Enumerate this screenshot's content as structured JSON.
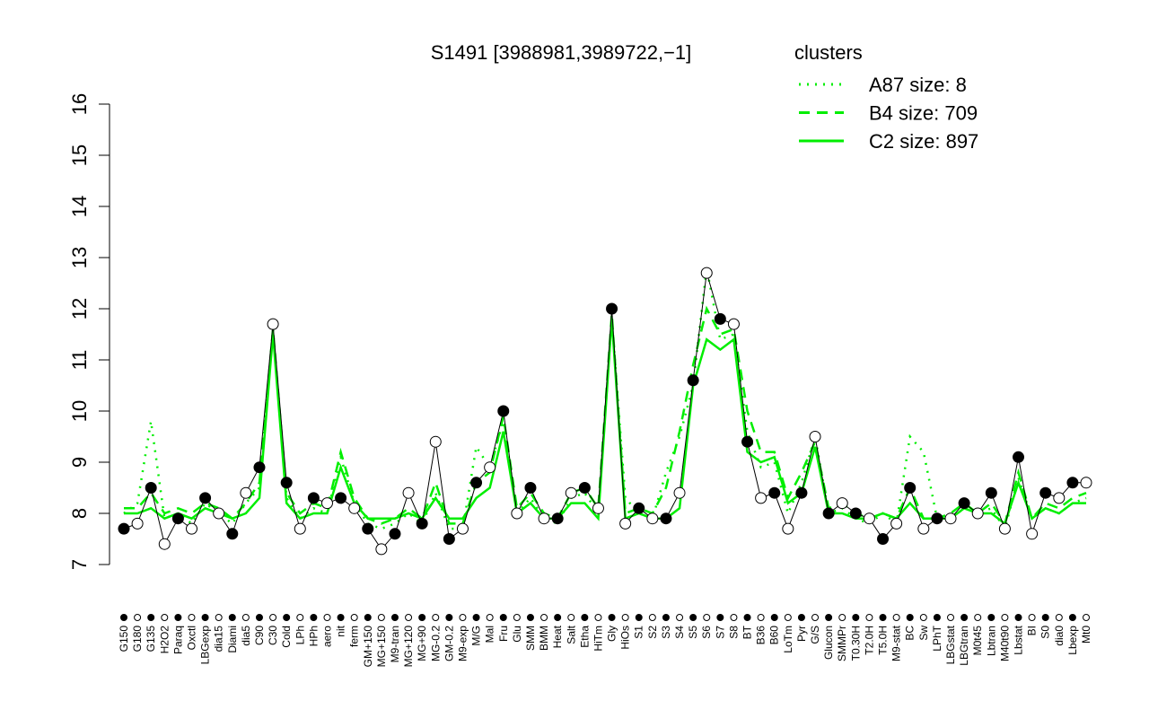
{
  "chart_data": {
    "type": "line",
    "title": "S1491 [3988981,3989722,−1]",
    "legend_title": "clusters",
    "legend_color": "#00ee00",
    "point_colors": [
      "#000000",
      "#ffffff"
    ],
    "categories": [
      "G150",
      "G180",
      "G135",
      "H2O2",
      "Paraq",
      "Oxctl",
      "LBGexp",
      "dia15",
      "Diami",
      "dia5",
      "C90",
      "C30",
      "Cold",
      "LPh",
      "HPh",
      "aero",
      "nit",
      "ferm",
      "GM+150",
      "MG+150",
      "M9-tran",
      "MG+120",
      "MG+90",
      "MG-0.2",
      "GM-0.2",
      "M9-exp",
      "M/G",
      "Mal",
      "Fru",
      "Glu",
      "SMM",
      "BMM",
      "Heat",
      "Salt",
      "Etha",
      "HiTm",
      "Gly",
      "HiOs",
      "S1",
      "S2",
      "S3",
      "S4",
      "S5",
      "S6",
      "S7",
      "S8",
      "BT",
      "B36",
      "B60",
      "LoTm",
      "Pyr",
      "G/S",
      "Glucon",
      "SMMPr",
      "T0.30H",
      "T2.0H",
      "T5.0H",
      "M9-stat",
      "BC",
      "Sw",
      "LPhT",
      "LBGstat",
      "LBGtran",
      "M0t45",
      "Lbtran",
      "M40t90",
      "Lbstat",
      "BI",
      "S0",
      "dia0",
      "Lbexp",
      "Mt0"
    ],
    "values": [
      7.7,
      7.8,
      8.5,
      7.4,
      7.9,
      7.7,
      8.3,
      8.0,
      7.6,
      8.4,
      8.9,
      11.7,
      8.6,
      7.7,
      8.3,
      8.2,
      8.3,
      8.1,
      7.7,
      7.3,
      7.6,
      8.4,
      7.8,
      9.4,
      7.5,
      7.7,
      8.6,
      8.9,
      10.0,
      8.0,
      8.5,
      7.9,
      7.9,
      8.4,
      8.5,
      8.1,
      12.0,
      7.8,
      8.1,
      7.9,
      7.9,
      8.4,
      10.6,
      12.7,
      11.8,
      11.7,
      9.4,
      8.3,
      8.4,
      7.7,
      8.4,
      9.5,
      8.0,
      8.2,
      8.0,
      7.9,
      7.5,
      7.8,
      8.5,
      7.7,
      7.9,
      7.9,
      8.2,
      8.0,
      8.4,
      7.7,
      9.1,
      7.6,
      8.4,
      8.3,
      8.6,
      8.6
    ],
    "series": [
      {
        "name": "A87 size: 8",
        "style": "dotted",
        "color": "#00ee00",
        "values": [
          8.0,
          8.2,
          9.8,
          7.9,
          8.0,
          7.8,
          8.2,
          8.0,
          7.8,
          8.2,
          8.5,
          11.6,
          8.3,
          7.9,
          8.1,
          8.0,
          9.1,
          8.2,
          7.8,
          7.7,
          7.8,
          8.0,
          7.8,
          8.4,
          7.7,
          7.7,
          9.3,
          8.9,
          9.8,
          8.0,
          8.3,
          7.9,
          7.8,
          8.3,
          8.4,
          8.0,
          11.8,
          8.3,
          8.0,
          7.9,
          8.8,
          9.5,
          10.5,
          12.8,
          11.4,
          11.5,
          9.6,
          8.9,
          9.0,
          8.0,
          8.6,
          9.5,
          8.0,
          8.1,
          7.9,
          7.8,
          8.0,
          7.8,
          9.5,
          9.2,
          7.9,
          7.9,
          8.1,
          8.0,
          8.1,
          7.7,
          8.7,
          7.9,
          8.1,
          8.0,
          8.2,
          8.3
        ]
      },
      {
        "name": "B4 size: 709",
        "style": "dashed",
        "color": "#00ee00",
        "values": [
          8.1,
          8.1,
          8.4,
          8.0,
          8.1,
          8.0,
          8.2,
          8.1,
          7.9,
          8.2,
          8.6,
          11.6,
          8.4,
          8.0,
          8.2,
          8.1,
          9.2,
          8.3,
          7.9,
          7.8,
          7.9,
          8.1,
          7.9,
          8.6,
          7.8,
          7.8,
          8.6,
          8.8,
          9.9,
          8.1,
          8.4,
          8.0,
          7.9,
          8.4,
          8.5,
          8.1,
          11.9,
          8.0,
          8.1,
          8.0,
          8.5,
          9.6,
          10.9,
          12.0,
          11.5,
          11.6,
          10.0,
          9.2,
          9.2,
          8.3,
          8.8,
          9.4,
          8.1,
          8.2,
          8.0,
          7.9,
          8.0,
          7.9,
          8.5,
          7.9,
          7.9,
          8.0,
          8.2,
          8.0,
          8.2,
          7.8,
          8.8,
          7.9,
          8.2,
          8.1,
          8.3,
          8.4
        ]
      },
      {
        "name": "C2 size: 897",
        "style": "solid",
        "color": "#00ee00",
        "values": [
          8.0,
          8.0,
          8.1,
          7.9,
          8.0,
          7.9,
          8.1,
          8.0,
          7.9,
          8.0,
          8.3,
          11.5,
          8.2,
          7.9,
          8.0,
          8.0,
          8.9,
          8.2,
          7.9,
          7.9,
          7.9,
          8.0,
          7.9,
          8.3,
          7.9,
          7.9,
          8.3,
          8.5,
          9.6,
          8.0,
          8.2,
          7.9,
          7.9,
          8.2,
          8.2,
          7.9,
          11.8,
          7.9,
          8.0,
          7.9,
          7.9,
          8.1,
          10.5,
          11.4,
          11.2,
          11.4,
          9.2,
          9.0,
          9.1,
          8.2,
          8.4,
          9.3,
          8.0,
          8.0,
          7.9,
          7.9,
          8.0,
          7.9,
          8.2,
          7.9,
          7.9,
          7.9,
          8.1,
          8.0,
          8.0,
          7.8,
          8.6,
          7.9,
          8.1,
          8.0,
          8.2,
          8.2
        ]
      }
    ],
    "ylim": [
      7,
      16
    ],
    "yticks": [
      7,
      8,
      9,
      10,
      11,
      12,
      13,
      14,
      15,
      16
    ]
  }
}
